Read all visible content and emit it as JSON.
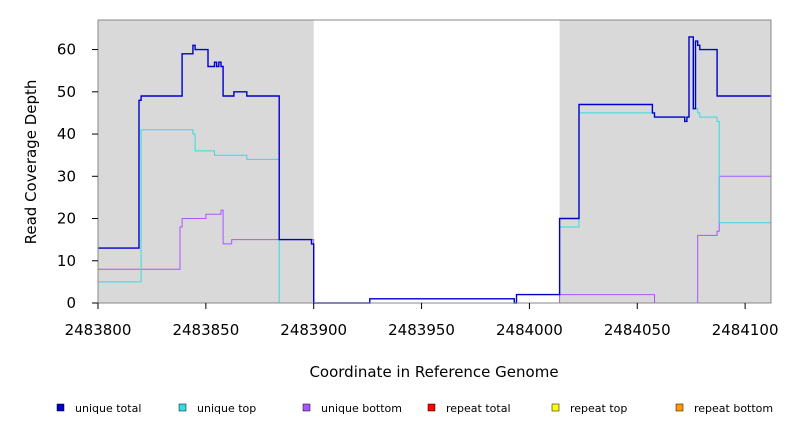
{
  "chart_data": {
    "type": "line",
    "title": "",
    "xlabel": "Coordinate in Reference Genome",
    "ylabel": "Read Coverage Depth",
    "xlim": [
      2483800,
      2484112
    ],
    "ylim": [
      0,
      67
    ],
    "x_ticks": [
      2483800,
      2483850,
      2483900,
      2483950,
      2484000,
      2484050,
      2484100
    ],
    "y_ticks": [
      0,
      10,
      20,
      30,
      40,
      50,
      60
    ],
    "grid": false,
    "legend_position": "bottom",
    "shaded_regions": [
      {
        "x0": 2483800,
        "x1": 2483900,
        "color": "#d9d9d9"
      },
      {
        "x0": 2484014,
        "x1": 2484112,
        "color": "#d9d9d9"
      }
    ],
    "series": [
      {
        "name": "unique total",
        "color": "#0000cc",
        "x": [
          2483800,
          2483819,
          2483819,
          2483820,
          2483838,
          2483839,
          2483844,
          2483845,
          2483851,
          2483854,
          2483855,
          2483856,
          2483857,
          2483858,
          2483863,
          2483869,
          2483884,
          2483899,
          2483900,
          2483926,
          2483993,
          2483994,
          2484014,
          2484023,
          2484057,
          2484058,
          2484072,
          2484073,
          2484074,
          2484075,
          2484076,
          2484077,
          2484078,
          2484079,
          2484080,
          2484087,
          2484112
        ],
        "y": [
          13,
          13,
          48,
          49,
          49,
          59,
          61,
          60,
          56,
          57,
          56,
          57,
          56,
          49,
          50,
          49,
          15,
          14,
          0,
          1,
          0,
          2,
          20,
          47,
          45,
          44,
          43,
          44,
          63,
          63,
          46,
          62,
          61,
          60,
          60,
          49,
          49
        ]
      },
      {
        "name": "unique top",
        "color": "#33dddd",
        "x": [
          2483800,
          2483819,
          2483820,
          2483838,
          2483844,
          2483845,
          2483851,
          2483854,
          2483858,
          2483863,
          2483869,
          2483884,
          2483900,
          2483926,
          2483993,
          2483994,
          2484014,
          2484023,
          2484057,
          2484058,
          2484073,
          2484074,
          2484075,
          2484076,
          2484077,
          2484078,
          2484079,
          2484080,
          2484087,
          2484088,
          2484112
        ],
        "y": [
          5,
          5,
          41,
          41,
          40,
          36,
          36,
          35,
          35,
          35,
          34,
          0,
          0,
          1,
          0,
          2,
          18,
          45,
          45,
          44,
          44,
          63,
          63,
          46,
          46,
          45,
          44,
          44,
          43,
          19,
          19
        ]
      },
      {
        "name": "unique bottom",
        "color": "#aa55ff",
        "x": [
          2483800,
          2483837,
          2483838,
          2483839,
          2483849,
          2483850,
          2483856,
          2483857,
          2483858,
          2483862,
          2483884,
          2483899,
          2483900,
          2484014,
          2484057,
          2484058,
          2484077,
          2484078,
          2484086,
          2484087,
          2484088,
          2484112
        ],
        "y": [
          8,
          8,
          18,
          20,
          20,
          21,
          21,
          22,
          14,
          15,
          15,
          15,
          0,
          2,
          2,
          0,
          0,
          16,
          16,
          17,
          30,
          30
        ]
      },
      {
        "name": "repeat total",
        "color": "#ff0000",
        "x": [
          2483800,
          2484112
        ],
        "y": [
          0,
          0
        ]
      },
      {
        "name": "repeat top",
        "color": "#ffff00",
        "x": [
          2483800,
          2484112
        ],
        "y": [
          0,
          0
        ]
      },
      {
        "name": "repeat bottom",
        "color": "#ff9900",
        "x": [
          2483800,
          2484112
        ],
        "y": [
          0,
          0
        ]
      }
    ]
  }
}
